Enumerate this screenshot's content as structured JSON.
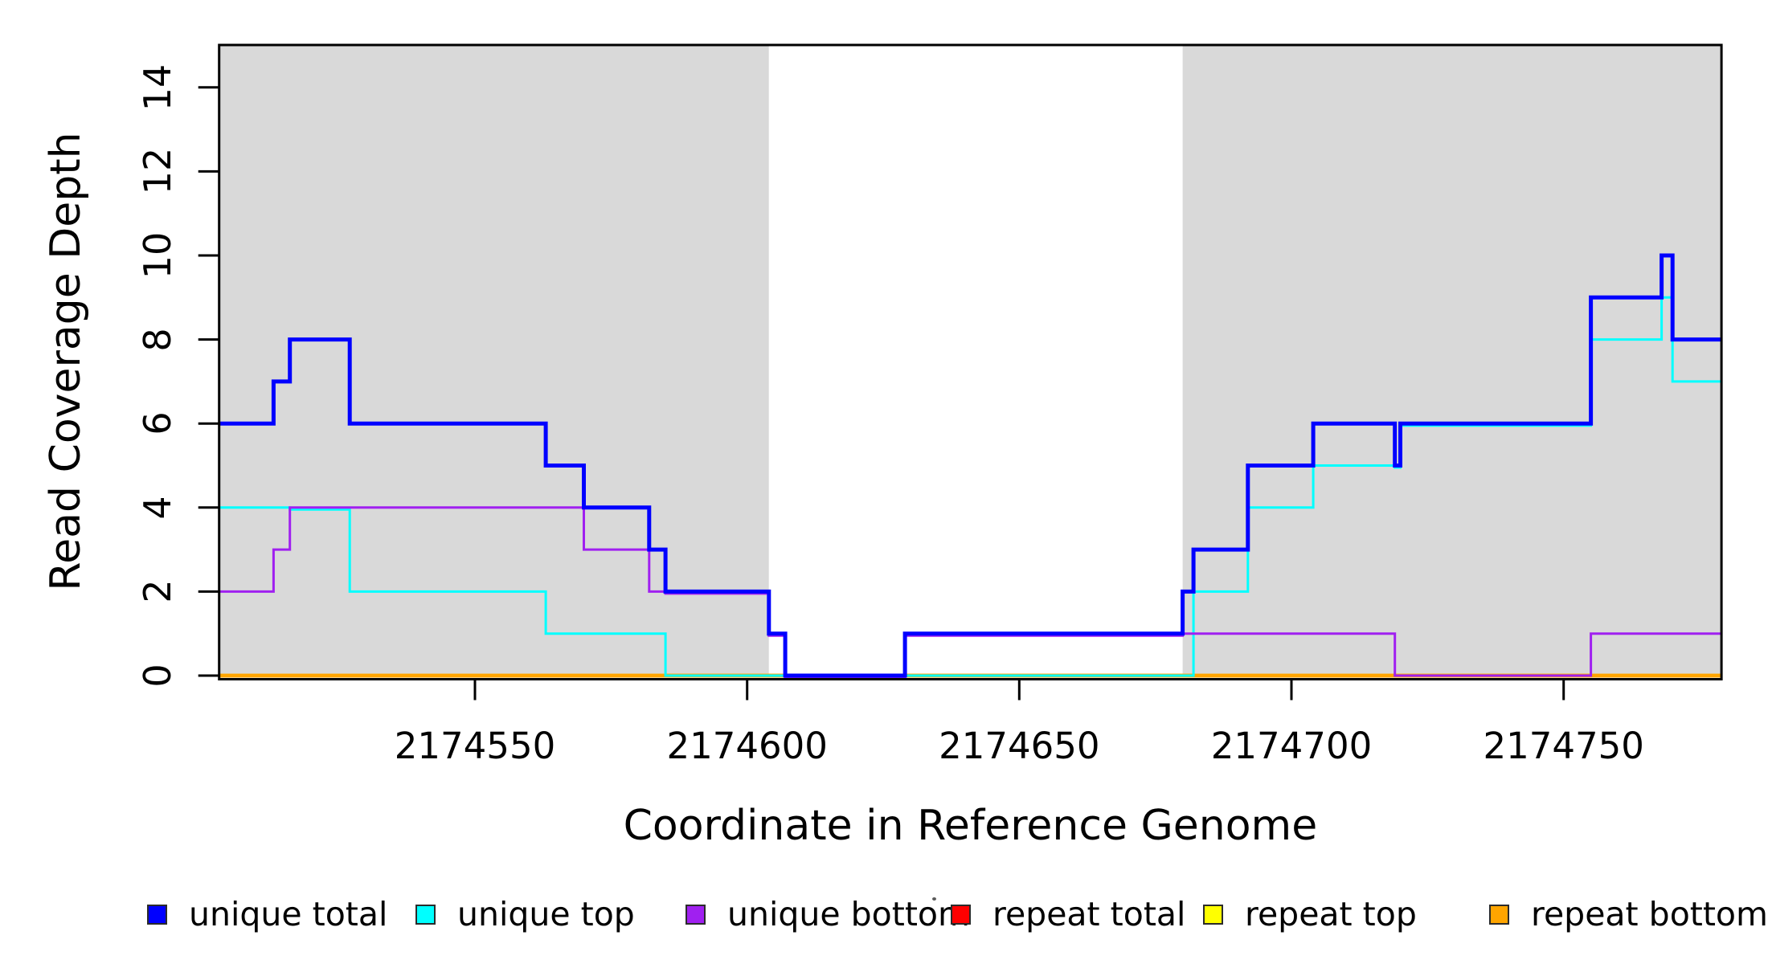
{
  "chart_data": {
    "type": "line",
    "subtype": "step-coverage",
    "title": "",
    "xlabel": "Coordinate in Reference Genome",
    "ylabel": "Read Coverage Depth",
    "x_domain": [
      2174503,
      2174779
    ],
    "y_domain": [
      0,
      15
    ],
    "grid": "off",
    "legend_position": "bottom",
    "x_ticks": [
      {
        "value": 2174550,
        "label": "2174550"
      },
      {
        "value": 2174600,
        "label": "2174600"
      },
      {
        "value": 2174650,
        "label": "2174650"
      },
      {
        "value": 2174700,
        "label": "2174700"
      },
      {
        "value": 2174750,
        "label": "2174750"
      }
    ],
    "y_ticks": [
      {
        "value": 0,
        "label": "0"
      },
      {
        "value": 2,
        "label": "2"
      },
      {
        "value": 4,
        "label": "4"
      },
      {
        "value": 6,
        "label": "6"
      },
      {
        "value": 8,
        "label": "8"
      },
      {
        "value": 10,
        "label": "10"
      },
      {
        "value": 12,
        "label": "12"
      },
      {
        "value": 14,
        "label": "14"
      }
    ],
    "shaded_regions": [
      {
        "from": 2174503,
        "to": 2174604,
        "color": "#D9D9D9"
      },
      {
        "from": 2174680,
        "to": 2174779,
        "color": "#D9D9D9"
      }
    ],
    "series": [
      {
        "name": "repeat total",
        "color": "#FF0000",
        "breaks": [
          2174503,
          2174779
        ],
        "values": [
          0
        ]
      },
      {
        "name": "repeat top",
        "color": "#FFFF00",
        "breaks": [
          2174503,
          2174779
        ],
        "values": [
          0
        ]
      },
      {
        "name": "repeat bottom",
        "color": "#FFA500",
        "breaks": [
          2174503,
          2174779
        ],
        "values": [
          0
        ]
      },
      {
        "name": "unique top",
        "color": "#00FFFF",
        "breaks": [
          2174503,
          2174527,
          2174563,
          2174585,
          2174682,
          2174692,
          2174704,
          2174720,
          2174755,
          2174768,
          2174770,
          2174779
        ],
        "values": [
          4,
          2,
          1,
          0,
          2,
          4,
          5,
          6,
          8,
          9,
          7
        ]
      },
      {
        "name": "unique bottom",
        "color": "#A020F0",
        "breaks": [
          2174503,
          2174513,
          2174516,
          2174570,
          2174582,
          2174604,
          2174607,
          2174629,
          2174719,
          2174755,
          2174779
        ],
        "values": [
          2,
          3,
          4,
          3,
          2,
          1,
          0,
          1,
          0,
          1
        ]
      },
      {
        "name": "unique total",
        "color": "#0000FF",
        "breaks": [
          2174503,
          2174513,
          2174516,
          2174527,
          2174563,
          2174570,
          2174582,
          2174585,
          2174604,
          2174607,
          2174629,
          2174680,
          2174682,
          2174692,
          2174704,
          2174719,
          2174720,
          2174755,
          2174768,
          2174770,
          2174779
        ],
        "values": [
          6,
          7,
          8,
          6,
          5,
          4,
          3,
          2,
          1,
          0,
          1,
          2,
          3,
          5,
          6,
          5,
          6,
          9,
          10,
          8
        ]
      }
    ]
  },
  "legend": {
    "items": [
      {
        "label": "unique total",
        "color": "#0000FF"
      },
      {
        "label": "unique top",
        "color": "#00FFFF"
      },
      {
        "label": "unique bottom",
        "color": "#A020F0"
      },
      {
        "label": "repeat total",
        "color": "#FF0000"
      },
      {
        "label": "repeat top",
        "color": "#FFFF00"
      },
      {
        "label": "repeat bottom",
        "color": "#FFA500"
      }
    ]
  }
}
